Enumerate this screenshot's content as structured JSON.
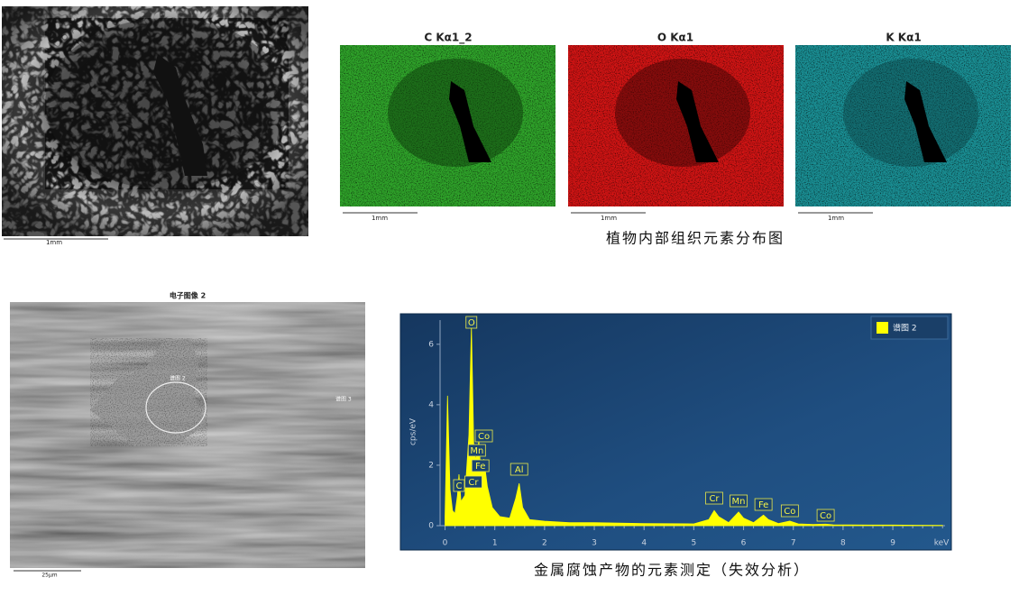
{
  "top_figure": {
    "sem_scale": "1mm",
    "maps": [
      {
        "title": "C Kα1_2",
        "scale": "1mm"
      },
      {
        "title": "O Kα1",
        "scale": "1mm"
      },
      {
        "title": "K Kα1",
        "scale": "1mm"
      }
    ],
    "caption": "植物内部组织元素分布图"
  },
  "bottom_figure": {
    "image_title": "电子图像 2",
    "image_labels": [
      "谱图 2",
      "谱图 3"
    ],
    "image_scale": "25μm",
    "caption": "金属腐蚀产物的元素测定（失效分析）"
  },
  "chart_data": {
    "type": "area",
    "x": [
      0,
      0.05,
      0.1,
      0.15,
      0.2,
      0.25,
      0.28,
      0.32,
      0.4,
      0.48,
      0.53,
      0.58,
      0.62,
      0.68,
      0.72,
      0.78,
      0.85,
      0.95,
      1.1,
      1.3,
      1.42,
      1.49,
      1.56,
      1.7,
      2,
      2.5,
      3,
      4,
      5,
      5.3,
      5.41,
      5.5,
      5.7,
      5.9,
      6.0,
      6.2,
      6.4,
      6.5,
      6.7,
      6.93,
      7.1,
      7.4,
      7.65,
      7.8,
      8.5,
      9,
      10
    ],
    "series": [
      {
        "name": "谱图 2",
        "color": "#ffff00",
        "values": [
          0.3,
          4.3,
          1.2,
          0.5,
          0.4,
          1.0,
          1.7,
          0.8,
          1.0,
          3.0,
          6.6,
          2.4,
          2.2,
          2.8,
          1.7,
          2.2,
          1.3,
          0.6,
          0.3,
          0.25,
          0.9,
          1.4,
          0.6,
          0.2,
          0.15,
          0.1,
          0.1,
          0.07,
          0.06,
          0.2,
          0.5,
          0.3,
          0.1,
          0.45,
          0.25,
          0.1,
          0.35,
          0.2,
          0.07,
          0.15,
          0.06,
          0.04,
          0.05,
          0.03,
          0.02,
          0.02,
          0.01
        ]
      }
    ],
    "xlim": [
      -0.1,
      10.05
    ],
    "ylim": [
      0,
      6.8
    ],
    "xticks": [
      0,
      1,
      2,
      3,
      4,
      5,
      6,
      7,
      8,
      9
    ],
    "yticks": [
      0,
      2,
      4,
      6
    ],
    "xlabel": "keV",
    "ylabel": "cps/eV",
    "annotations": [
      {
        "label": "O",
        "x": 0.53
      },
      {
        "label": "Co",
        "x": 0.78
      },
      {
        "label": "Mn",
        "x": 0.64
      },
      {
        "label": "Fe",
        "x": 0.71
      },
      {
        "label": "Cr",
        "x": 0.57
      },
      {
        "label": "C",
        "x": 0.28
      },
      {
        "label": "Al",
        "x": 1.49
      },
      {
        "label": "Cr",
        "x": 5.41
      },
      {
        "label": "Mn",
        "x": 5.9
      },
      {
        "label": "Fe",
        "x": 6.4
      },
      {
        "label": "Co",
        "x": 6.93
      },
      {
        "label": "Co",
        "x": 7.65
      }
    ]
  }
}
